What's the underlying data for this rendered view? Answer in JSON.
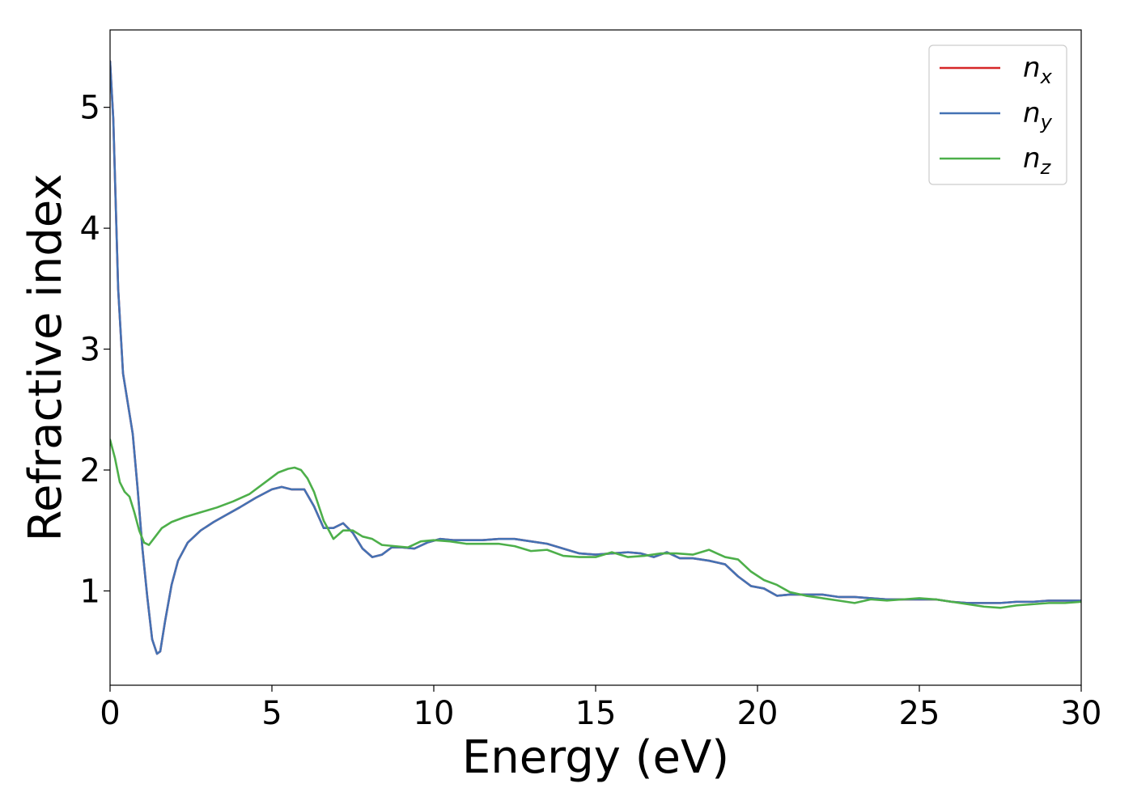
{
  "chart_data": {
    "type": "line",
    "title": "",
    "xlabel": "Energy (eV)",
    "ylabel": "Refractive index",
    "xlim": [
      0,
      30
    ],
    "ylim": [
      0.22,
      5.64
    ],
    "xticks": [
      0,
      5,
      10,
      15,
      20,
      25,
      30
    ],
    "xtick_labels": [
      "0",
      "5",
      "10",
      "15",
      "20",
      "25",
      "30"
    ],
    "yticks": [
      1,
      2,
      3,
      4,
      5
    ],
    "ytick_labels": [
      "1",
      "2",
      "3",
      "4",
      "5"
    ],
    "grid": false,
    "legend_position": "top-right",
    "series": [
      {
        "name": "n_x",
        "label_main": "n",
        "label_sub": "x",
        "color": "#d62728",
        "x": [
          0,
          0.1,
          0.25,
          0.4,
          0.55,
          0.7,
          0.85,
          1.0,
          1.15,
          1.3,
          1.45,
          1.55,
          1.7,
          1.9,
          2.1,
          2.4,
          2.8,
          3.2,
          3.6,
          4.0,
          4.5,
          5.0,
          5.3,
          5.6,
          6.0,
          6.3,
          6.6,
          6.9,
          7.2,
          7.5,
          7.8,
          8.1,
          8.4,
          8.7,
          9.0,
          9.4,
          9.8,
          10.2,
          10.6,
          11.0,
          11.5,
          12.0,
          12.5,
          13.0,
          13.5,
          14.0,
          14.5,
          15.0,
          15.5,
          16.0,
          16.4,
          16.8,
          17.2,
          17.6,
          18.0,
          18.5,
          19.0,
          19.4,
          19.8,
          20.2,
          20.6,
          21.0,
          21.5,
          22.0,
          22.5,
          23.0,
          23.5,
          24.0,
          24.5,
          25.0,
          25.5,
          26.0,
          26.5,
          27.0,
          27.5,
          28.0,
          28.5,
          29.0,
          29.5,
          30.0
        ],
        "y": [
          5.38,
          4.9,
          3.5,
          2.8,
          2.55,
          2.3,
          1.85,
          1.35,
          0.95,
          0.6,
          0.48,
          0.5,
          0.75,
          1.05,
          1.25,
          1.4,
          1.5,
          1.57,
          1.63,
          1.69,
          1.77,
          1.84,
          1.86,
          1.84,
          1.84,
          1.7,
          1.52,
          1.52,
          1.56,
          1.48,
          1.35,
          1.28,
          1.3,
          1.36,
          1.36,
          1.35,
          1.4,
          1.43,
          1.42,
          1.42,
          1.42,
          1.43,
          1.43,
          1.41,
          1.39,
          1.35,
          1.31,
          1.3,
          1.31,
          1.32,
          1.31,
          1.28,
          1.32,
          1.27,
          1.27,
          1.25,
          1.22,
          1.12,
          1.04,
          1.02,
          0.96,
          0.97,
          0.97,
          0.97,
          0.95,
          0.95,
          0.94,
          0.93,
          0.93,
          0.93,
          0.93,
          0.91,
          0.9,
          0.9,
          0.9,
          0.91,
          0.91,
          0.92,
          0.92,
          0.92
        ]
      },
      {
        "name": "n_y",
        "label_main": "n",
        "label_sub": "y",
        "color": "#4472b4",
        "x": [
          0,
          0.1,
          0.25,
          0.4,
          0.55,
          0.7,
          0.85,
          1.0,
          1.15,
          1.3,
          1.45,
          1.55,
          1.7,
          1.9,
          2.1,
          2.4,
          2.8,
          3.2,
          3.6,
          4.0,
          4.5,
          5.0,
          5.3,
          5.6,
          6.0,
          6.3,
          6.6,
          6.9,
          7.2,
          7.5,
          7.8,
          8.1,
          8.4,
          8.7,
          9.0,
          9.4,
          9.8,
          10.2,
          10.6,
          11.0,
          11.5,
          12.0,
          12.5,
          13.0,
          13.5,
          14.0,
          14.5,
          15.0,
          15.5,
          16.0,
          16.4,
          16.8,
          17.2,
          17.6,
          18.0,
          18.5,
          19.0,
          19.4,
          19.8,
          20.2,
          20.6,
          21.0,
          21.5,
          22.0,
          22.5,
          23.0,
          23.5,
          24.0,
          24.5,
          25.0,
          25.5,
          26.0,
          26.5,
          27.0,
          27.5,
          28.0,
          28.5,
          29.0,
          29.5,
          30.0
        ],
        "y": [
          5.38,
          4.9,
          3.5,
          2.8,
          2.55,
          2.3,
          1.85,
          1.35,
          0.95,
          0.6,
          0.48,
          0.5,
          0.75,
          1.05,
          1.25,
          1.4,
          1.5,
          1.57,
          1.63,
          1.69,
          1.77,
          1.84,
          1.86,
          1.84,
          1.84,
          1.7,
          1.52,
          1.52,
          1.56,
          1.48,
          1.35,
          1.28,
          1.3,
          1.36,
          1.36,
          1.35,
          1.4,
          1.43,
          1.42,
          1.42,
          1.42,
          1.43,
          1.43,
          1.41,
          1.39,
          1.35,
          1.31,
          1.3,
          1.31,
          1.32,
          1.31,
          1.28,
          1.32,
          1.27,
          1.27,
          1.25,
          1.22,
          1.12,
          1.04,
          1.02,
          0.96,
          0.97,
          0.97,
          0.97,
          0.95,
          0.95,
          0.94,
          0.93,
          0.93,
          0.93,
          0.93,
          0.91,
          0.9,
          0.9,
          0.9,
          0.91,
          0.91,
          0.92,
          0.92,
          0.92
        ]
      },
      {
        "name": "n_z",
        "label_main": "n",
        "label_sub": "z",
        "color": "#4daf4a",
        "x": [
          0,
          0.15,
          0.3,
          0.45,
          0.6,
          0.75,
          0.9,
          1.05,
          1.2,
          1.4,
          1.6,
          1.9,
          2.3,
          2.8,
          3.3,
          3.8,
          4.3,
          4.8,
          5.2,
          5.5,
          5.7,
          5.9,
          6.1,
          6.3,
          6.6,
          6.9,
          7.2,
          7.5,
          7.8,
          8.1,
          8.4,
          8.8,
          9.2,
          9.6,
          10.0,
          10.5,
          11.0,
          11.5,
          12.0,
          12.5,
          13.0,
          13.5,
          14.0,
          14.5,
          15.0,
          15.5,
          16.0,
          16.5,
          17.0,
          17.5,
          18.0,
          18.5,
          19.0,
          19.4,
          19.8,
          20.2,
          20.6,
          21.0,
          21.5,
          22.0,
          22.5,
          23.0,
          23.5,
          24.0,
          24.5,
          25.0,
          25.5,
          26.0,
          26.5,
          27.0,
          27.5,
          28.0,
          28.5,
          29.0,
          29.5,
          30.0
        ],
        "y": [
          2.25,
          2.1,
          1.9,
          1.82,
          1.78,
          1.65,
          1.5,
          1.4,
          1.38,
          1.45,
          1.52,
          1.57,
          1.61,
          1.65,
          1.69,
          1.74,
          1.8,
          1.9,
          1.98,
          2.01,
          2.02,
          2.0,
          1.93,
          1.82,
          1.58,
          1.43,
          1.5,
          1.5,
          1.45,
          1.43,
          1.38,
          1.37,
          1.36,
          1.41,
          1.42,
          1.41,
          1.39,
          1.39,
          1.39,
          1.37,
          1.33,
          1.34,
          1.29,
          1.28,
          1.28,
          1.32,
          1.28,
          1.29,
          1.31,
          1.31,
          1.3,
          1.34,
          1.28,
          1.26,
          1.16,
          1.09,
          1.05,
          0.99,
          0.96,
          0.94,
          0.92,
          0.9,
          0.93,
          0.92,
          0.93,
          0.94,
          0.93,
          0.91,
          0.89,
          0.87,
          0.86,
          0.88,
          0.89,
          0.9,
          0.9,
          0.91
        ]
      }
    ]
  }
}
